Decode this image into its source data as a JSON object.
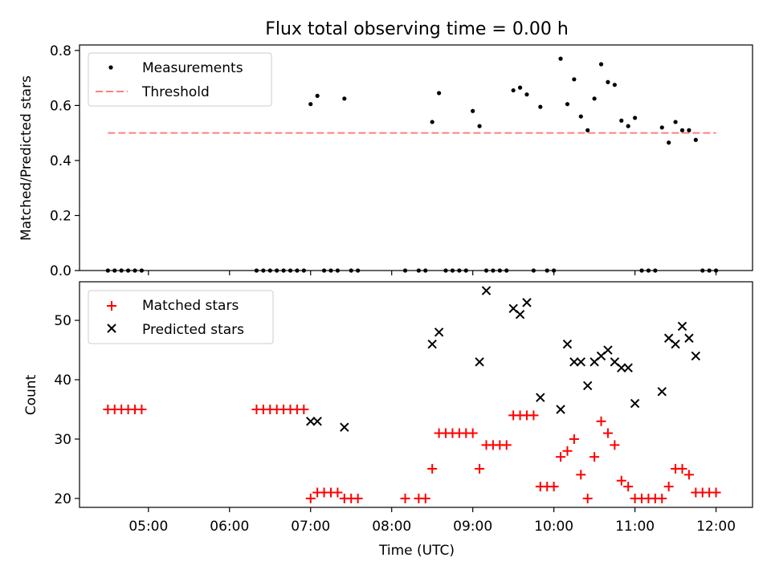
{
  "title": "Flux total observing time = 0.00 h",
  "xlabel": "Time (UTC)",
  "colors": {
    "measurement": "#000000",
    "threshold": "#ff7f7f",
    "matched": "#ff0000",
    "predicted": "#000000"
  },
  "chart_data": [
    {
      "type": "scatter",
      "title": "Flux total observing time = 0.00 h",
      "xlabel": "",
      "ylabel": "Matched/Predicted stars",
      "xlim": [
        "04:09",
        "12:27"
      ],
      "ylim": [
        0,
        0.82
      ],
      "yticks": [
        0.0,
        0.2,
        0.4,
        0.6,
        0.8
      ],
      "ytick_labels": [
        "0.0",
        "0.2",
        "0.4",
        "0.6",
        "0.8"
      ],
      "legend": {
        "placement": "upper-left",
        "entries": [
          "Measurements",
          "Threshold"
        ]
      },
      "threshold": {
        "name": "Threshold",
        "y": 0.5,
        "x": [
          "04:30",
          "12:00"
        ]
      },
      "series": [
        {
          "name": "Measurements",
          "x": [
            "04:30",
            "04:35",
            "04:40",
            "04:45",
            "04:50",
            "04:55",
            "06:20",
            "06:25",
            "06:30",
            "06:35",
            "06:40",
            "06:45",
            "06:50",
            "06:55",
            "07:00",
            "07:05",
            "07:10",
            "07:15",
            "07:20",
            "07:25",
            "07:30",
            "07:35",
            "08:10",
            "08:20",
            "08:25",
            "08:30",
            "08:35",
            "08:40",
            "08:45",
            "08:50",
            "08:55",
            "09:00",
            "09:05",
            "09:10",
            "09:15",
            "09:20",
            "09:25",
            "09:30",
            "09:35",
            "09:40",
            "09:45",
            "09:50",
            "09:55",
            "10:00",
            "10:05",
            "10:10",
            "10:15",
            "10:20",
            "10:25",
            "10:30",
            "10:35",
            "10:40",
            "10:45",
            "10:50",
            "10:55",
            "11:00",
            "11:05",
            "11:10",
            "11:15",
            "11:20",
            "11:25",
            "11:30",
            "11:35",
            "11:40",
            "11:45",
            "11:50",
            "11:55",
            "12:00"
          ],
          "y": [
            0,
            0,
            0,
            0,
            0,
            0,
            0,
            0,
            0,
            0,
            0,
            0,
            0,
            0,
            0.605,
            0.635,
            0,
            0,
            0,
            0.625,
            0,
            0,
            0,
            0,
            0,
            0.54,
            0.645,
            0,
            0,
            0,
            0,
            0.58,
            0.525,
            0,
            0,
            0,
            0,
            0.655,
            0.665,
            0.64,
            0,
            0.595,
            0,
            0,
            0.77,
            0.605,
            0.695,
            0.56,
            0.51,
            0.625,
            0.75,
            0.685,
            0.675,
            0.545,
            0.525,
            0.555,
            0,
            0,
            0,
            0.52,
            0.465,
            0.54,
            0.51,
            0.51,
            0.475,
            0,
            0,
            0
          ]
        }
      ]
    },
    {
      "type": "scatter",
      "xlabel": "Time (UTC)",
      "ylabel": "Count",
      "xlim": [
        "04:09",
        "12:27"
      ],
      "ylim": [
        18.5,
        56.5
      ],
      "yticks": [
        20,
        30,
        40,
        50
      ],
      "ytick_labels": [
        "20",
        "30",
        "40",
        "50"
      ],
      "xticks": [
        "05:00",
        "06:00",
        "07:00",
        "08:00",
        "09:00",
        "10:00",
        "11:00",
        "12:00"
      ],
      "legend": {
        "placement": "upper-left",
        "entries": [
          "Matched stars",
          "Predicted stars"
        ]
      },
      "series": [
        {
          "name": "Matched stars",
          "marker": "+",
          "x": [
            "04:30",
            "04:35",
            "04:40",
            "04:45",
            "04:50",
            "04:55",
            "06:20",
            "06:25",
            "06:30",
            "06:35",
            "06:40",
            "06:45",
            "06:50",
            "06:55",
            "07:00",
            "07:05",
            "07:10",
            "07:15",
            "07:20",
            "07:25",
            "07:30",
            "07:35",
            "08:10",
            "08:20",
            "08:25",
            "08:30",
            "08:35",
            "08:40",
            "08:45",
            "08:50",
            "08:55",
            "09:00",
            "09:05",
            "09:10",
            "09:15",
            "09:20",
            "09:25",
            "09:30",
            "09:35",
            "09:40",
            "09:45",
            "09:50",
            "09:55",
            "10:00",
            "10:05",
            "10:10",
            "10:15",
            "10:20",
            "10:25",
            "10:30",
            "10:35",
            "10:40",
            "10:45",
            "10:50",
            "10:55",
            "11:00",
            "11:05",
            "11:10",
            "11:15",
            "11:20",
            "11:25",
            "11:30",
            "11:35",
            "11:40",
            "11:45",
            "11:50",
            "11:55",
            "12:00"
          ],
          "y": [
            35,
            35,
            35,
            35,
            35,
            35,
            35,
            35,
            35,
            35,
            35,
            35,
            35,
            35,
            20,
            21,
            21,
            21,
            21,
            20,
            20,
            20,
            20,
            20,
            20,
            25,
            31,
            31,
            31,
            31,
            31,
            31,
            25,
            29,
            29,
            29,
            29,
            34,
            34,
            34,
            34,
            22,
            22,
            22,
            27,
            28,
            30,
            24,
            20,
            27,
            33,
            31,
            29,
            23,
            22,
            20,
            20,
            20,
            20,
            20,
            22,
            25,
            25,
            24,
            21,
            21,
            21,
            21
          ]
        },
        {
          "name": "Predicted stars",
          "marker": "x",
          "x": [
            "07:00",
            "07:05",
            "07:25",
            "08:30",
            "08:35",
            "09:05",
            "09:10",
            "09:30",
            "09:35",
            "09:40",
            "09:50",
            "10:05",
            "10:10",
            "10:15",
            "10:20",
            "10:25",
            "10:30",
            "10:35",
            "10:40",
            "10:45",
            "10:50",
            "10:55",
            "11:00",
            "11:20",
            "11:25",
            "11:30",
            "11:35",
            "11:40",
            "11:45"
          ],
          "y": [
            33,
            33,
            32,
            46,
            48,
            43,
            55,
            52,
            51,
            53,
            37,
            35,
            46,
            43,
            43,
            39,
            43,
            44,
            45,
            43,
            42,
            42,
            36,
            38,
            47,
            46,
            49,
            47,
            44
          ]
        }
      ]
    }
  ]
}
